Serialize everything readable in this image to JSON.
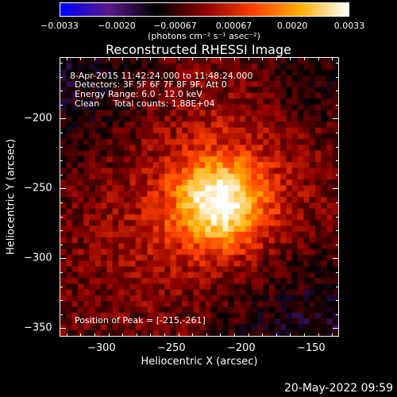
{
  "chart_data": {
    "type": "heatmap",
    "title": "Reconstructed RHESSI Image",
    "xlabel": "Heliocentric X (arcsec)",
    "ylabel": "Heliocentric Y (arcsec)",
    "xlim": [
      -330,
      -130
    ],
    "ylim": [
      -356,
      -156
    ],
    "x_ticks": [
      "−300",
      "−250",
      "−200",
      "−150"
    ],
    "x_tick_values": [
      -300,
      -250,
      -200,
      -150
    ],
    "y_ticks": [
      "−200",
      "−250",
      "−300",
      "−350"
    ],
    "y_tick_values": [
      -200,
      -250,
      -300,
      -350
    ],
    "colorbar": {
      "range": [
        -0.0033,
        0.0033
      ],
      "tick_labels": [
        "−0.0033",
        "−0.0020",
        "−0.00067",
        "0.00067",
        "0.0020",
        "0.0033"
      ],
      "tick_values": [
        -0.0033,
        -0.002,
        -0.00067,
        0.00067,
        0.002,
        0.0033
      ],
      "unit_text": "(photons cm⁻² s⁻¹ asec⁻²)",
      "colors": [
        "#0000ff",
        "#5a1a8c",
        "#000000",
        "#8b0000",
        "#ff4000",
        "#ffb000",
        "#ffffff"
      ]
    },
    "peak": {
      "x": -215,
      "y": -261
    },
    "peak_value": 0.0033,
    "info": {
      "time_range": "8-Apr-2015 11:42:24.000 to 11:48:24.000",
      "detectors": "Detectors: 3F 5F 6F 7F 8F 9F, Att 0",
      "energy": "Energy Range: 6.0 - 12.0 keV",
      "clean": "Clean     Total counts: 1.88E+04",
      "peak_label": "Position of Peak = [-215,-261]"
    }
  },
  "timestamp": "20-May-2022 09:59"
}
